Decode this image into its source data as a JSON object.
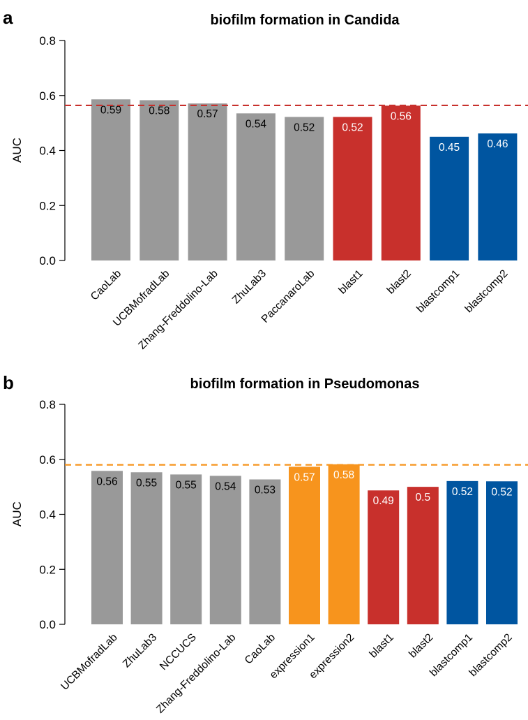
{
  "chart_data": [
    {
      "panel": "a",
      "type": "bar",
      "title": "biofilm formation in Candida",
      "ylabel": "AUC",
      "xlabel": "",
      "ylim": [
        0,
        0.8
      ],
      "yticks": [
        "0.0",
        "0.2",
        "0.4",
        "0.6",
        "0.8"
      ],
      "reference_line": {
        "value": 0.564,
        "color": "#C8302C",
        "style": "dashed"
      },
      "grid": false,
      "categories": [
        "CaoLab",
        "UCBMofradLab",
        "Zhang-Freddolino-Lab",
        "ZhuLab3",
        "PaccanaroLab",
        "blast1",
        "blast2",
        "blastcomp1",
        "blastcomp2"
      ],
      "values": [
        0.586,
        0.583,
        0.571,
        0.535,
        0.522,
        0.522,
        0.563,
        0.45,
        0.462
      ],
      "data_labels": [
        "0.59",
        "0.58",
        "0.57",
        "0.54",
        "0.52",
        "0.52",
        "0.56",
        "0.45",
        "0.46"
      ],
      "colors": [
        "#999999",
        "#999999",
        "#999999",
        "#999999",
        "#999999",
        "#C8302C",
        "#C8302C",
        "#0055A0",
        "#0055A0"
      ],
      "label_colors": [
        "#000000",
        "#000000",
        "#000000",
        "#000000",
        "#000000",
        "#FFFFFF",
        "#FFFFFF",
        "#FFFFFF",
        "#FFFFFF"
      ]
    },
    {
      "panel": "b",
      "type": "bar",
      "title": "biofilm formation in Pseudomonas",
      "ylabel": "AUC",
      "xlabel": "",
      "ylim": [
        0,
        0.8
      ],
      "yticks": [
        "0.0",
        "0.2",
        "0.4",
        "0.6",
        "0.8"
      ],
      "reference_line": {
        "value": 0.58,
        "color": "#F7941D",
        "style": "dashed"
      },
      "grid": false,
      "categories": [
        "UCBMofradLab",
        "ZhuLab3",
        "NCCUCS",
        "Zhang-Freddolino-Lab",
        "CaoLab",
        "expression1",
        "expression2",
        "blast1",
        "blast2",
        "blastcomp1",
        "blastcomp2"
      ],
      "values": [
        0.558,
        0.553,
        0.545,
        0.54,
        0.527,
        0.573,
        0.582,
        0.487,
        0.5,
        0.521,
        0.52
      ],
      "data_labels": [
        "0.56",
        "0.55",
        "0.55",
        "0.54",
        "0.53",
        "0.57",
        "0.58",
        "0.49",
        "0.5",
        "0.52",
        "0.52"
      ],
      "colors": [
        "#999999",
        "#999999",
        "#999999",
        "#999999",
        "#999999",
        "#F7941D",
        "#F7941D",
        "#C8302C",
        "#C8302C",
        "#0055A0",
        "#0055A0"
      ],
      "label_colors": [
        "#000000",
        "#000000",
        "#000000",
        "#000000",
        "#000000",
        "#FFFFFF",
        "#FFFFFF",
        "#FFFFFF",
        "#FFFFFF",
        "#FFFFFF",
        "#FFFFFF"
      ]
    }
  ]
}
